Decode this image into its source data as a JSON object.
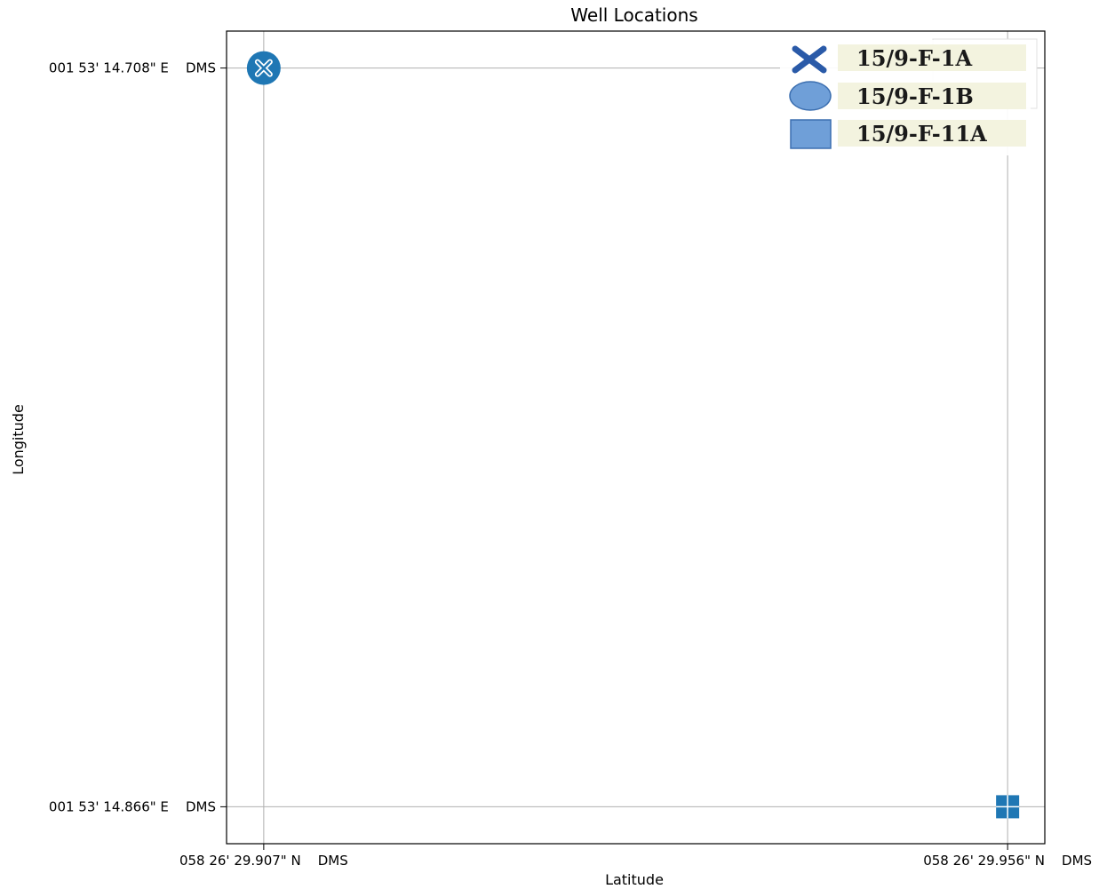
{
  "chart_data": {
    "type": "scatter",
    "title": "Well Locations",
    "xlabel": "Latitude",
    "ylabel": "Longitude",
    "x_ticks": [
      {
        "value": 0,
        "label": "058 26' 29.907\" N    DMS"
      },
      {
        "value": 1,
        "label": "058 26' 29.956\" N    DMS"
      }
    ],
    "y_ticks": [
      {
        "value": 0,
        "label": "001 53' 14.866\" E    DMS"
      },
      {
        "value": 1,
        "label": "001 53' 14.708\" E    DMS"
      }
    ],
    "xlim": [
      -0.05,
      1.05
    ],
    "ylim": [
      -0.05,
      1.05
    ],
    "grid": true,
    "legend_position": "top-right",
    "series": [
      {
        "name": "15/9-F-1A",
        "marker": "x",
        "color": "#1f77b4",
        "points": [
          {
            "x": 0,
            "y": 1
          }
        ]
      },
      {
        "name": "15/9-F-1B",
        "marker": "o",
        "color": "#1f77b4",
        "points": [
          {
            "x": 0,
            "y": 1
          }
        ]
      },
      {
        "name": "15/9-F-11A",
        "marker": "s",
        "color": "#1f77b4",
        "points": [
          {
            "x": 1,
            "y": 0
          }
        ]
      }
    ]
  },
  "legend": {
    "items": [
      {
        "label": "15/9-F-1A",
        "icon": "x-marker-icon",
        "color": "#2a5aa8"
      },
      {
        "label": "15/9-F-1B",
        "icon": "circle-marker-icon",
        "color": "#6f9fd8"
      },
      {
        "label": "15/9-F-11A",
        "icon": "square-marker-icon",
        "color": "#6f9fd8"
      }
    ],
    "label_bg": "#f3f3df"
  }
}
